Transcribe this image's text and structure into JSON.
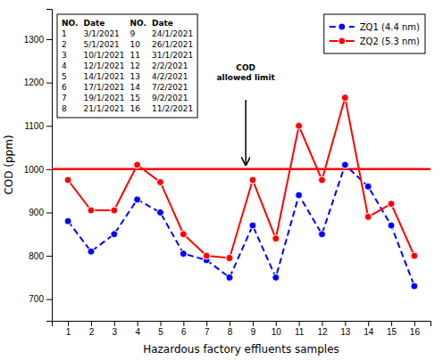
{
  "chart_data": {
    "type": "line",
    "x": [
      1,
      2,
      3,
      4,
      5,
      6,
      7,
      8,
      9,
      10,
      11,
      12,
      13,
      14,
      15,
      16
    ],
    "series": [
      {
        "name": "ZQ1 (4.4 nm)",
        "color": "#0000FF",
        "line_style": "dashed",
        "marker": "circle",
        "values": [
          880,
          810,
          850,
          930,
          900,
          805,
          790,
          750,
          870,
          750,
          940,
          850,
          1010,
          960,
          870,
          730
        ]
      },
      {
        "name": "ZQ2 (5.3 nm)",
        "color": "#FF0000",
        "line_style": "solid",
        "marker": "circle",
        "values": [
          975,
          905,
          905,
          1010,
          970,
          850,
          800,
          795,
          975,
          840,
          1100,
          975,
          1165,
          890,
          920,
          800
        ]
      }
    ],
    "limit_line": {
      "value": 1000,
      "color": "#FF0000"
    },
    "annotation": {
      "text": "COD\nallowed limit",
      "x": 8.7,
      "y": 1200,
      "arrow": {
        "x": 8.7,
        "from": 1160,
        "to": 1010
      }
    },
    "xlabel": "Hazardous factory effluents samples",
    "ylabel": "COD (ppm)",
    "xlim": [
      0.3,
      16.7
    ],
    "xticks": [
      1,
      2,
      3,
      4,
      5,
      6,
      7,
      8,
      9,
      10,
      11,
      12,
      13,
      14,
      15,
      16
    ],
    "ylim": [
      650,
      1370
    ],
    "yticks": [
      700,
      800,
      900,
      1000,
      1100,
      1200,
      1300
    ],
    "grid": false,
    "legend": "upper right",
    "table": {
      "header": [
        "NO.",
        "Date",
        "NO.",
        "Date"
      ],
      "rows": [
        [
          "1",
          "3/1/2021",
          "9",
          "24/1/2021"
        ],
        [
          "2",
          "5/1/2021",
          "10",
          "26/1/2021"
        ],
        [
          "3",
          "10/1/2021",
          "11",
          "31/1/2021"
        ],
        [
          "4",
          "12/1/2021",
          "12",
          "2/2/2021"
        ],
        [
          "5",
          "14/1/2021",
          "13",
          "4/2/2021"
        ],
        [
          "6",
          "17/1/2021",
          "14",
          "7/2/2021"
        ],
        [
          "7",
          "19/1/2021",
          "15",
          "9/2/2021"
        ],
        [
          "8",
          "21/1/2021",
          "16",
          "11/2/2021"
        ]
      ]
    }
  }
}
